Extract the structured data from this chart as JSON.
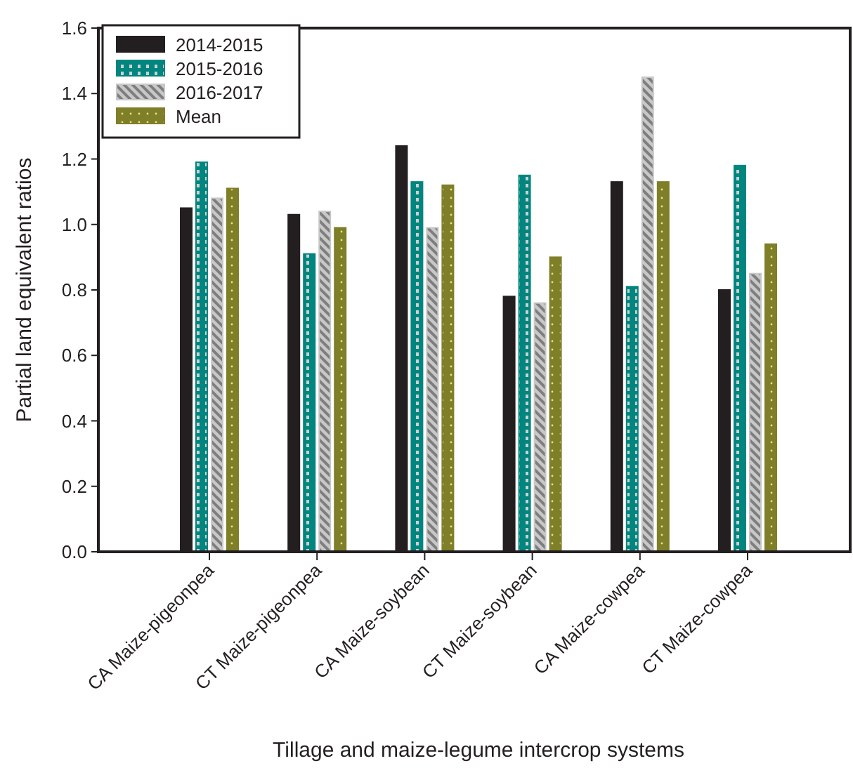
{
  "chart_data": {
    "type": "bar",
    "xlabel": "Tillage and maize-legume intercrop systems",
    "ylabel": "Partial land equivalent ratios",
    "categories": [
      "CA Maize-pigeonpea",
      "CT Maize-pigeonpea",
      "CA Maize-soybean",
      "CT Maize-soybean",
      "CA Maize-cowpea",
      "CT Maize-cowpea"
    ],
    "series": [
      {
        "name": "2014-2015",
        "color": "#231f20",
        "values": [
          1.05,
          1.03,
          1.24,
          0.78,
          1.13,
          0.8
        ]
      },
      {
        "name": "2015-2016",
        "color": "#00857f",
        "values": [
          1.19,
          0.91,
          1.13,
          1.15,
          0.81,
          1.18
        ]
      },
      {
        "name": "2016-2017",
        "color": "#c8c8c8",
        "values": [
          1.08,
          1.04,
          0.99,
          0.76,
          1.45,
          0.85
        ]
      },
      {
        "name": "Mean",
        "color": "#7f7f2a",
        "values": [
          1.11,
          0.99,
          1.12,
          0.9,
          1.13,
          0.94
        ]
      }
    ],
    "ylim": [
      0,
      1.6
    ],
    "yticks": [
      {
        "value": 0,
        "label": "0.0"
      },
      {
        "value": 0.2,
        "label": "0.2"
      },
      {
        "value": 0.4,
        "label": "0.4"
      },
      {
        "value": 0.6,
        "label": "0.6"
      },
      {
        "value": 0.8,
        "label": "0.8"
      },
      {
        "value": 1,
        "label": "1.0"
      },
      {
        "value": 1.2,
        "label": "1.2"
      },
      {
        "value": 1.4,
        "label": "1.4"
      },
      {
        "value": 1.6,
        "label": "1.6"
      }
    ],
    "legend": "top left",
    "grid": false
  }
}
